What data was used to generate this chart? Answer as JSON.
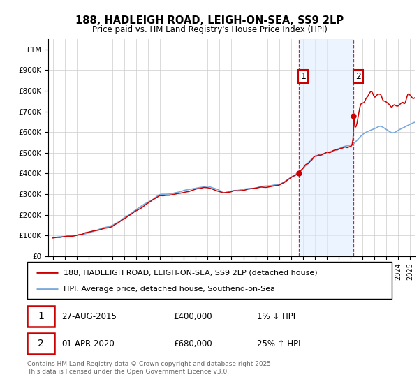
{
  "title": "188, HADLEIGH ROAD, LEIGH-ON-SEA, SS9 2LP",
  "subtitle": "Price paid vs. HM Land Registry's House Price Index (HPI)",
  "yticks": [
    0,
    100000,
    200000,
    300000,
    400000,
    500000,
    600000,
    700000,
    800000,
    900000,
    1000000
  ],
  "ytick_labels": [
    "£0",
    "£100K",
    "£200K",
    "£300K",
    "£400K",
    "£500K",
    "£600K",
    "£700K",
    "£800K",
    "£900K",
    "£1M"
  ],
  "xlim_start": 1994.6,
  "xlim_end": 2025.4,
  "ylim_min": 0,
  "ylim_max": 1050000,
  "transaction1_date": 2015.65,
  "transaction1_price": 400000,
  "transaction2_date": 2020.25,
  "transaction2_price": 680000,
  "legend_line1": "188, HADLEIGH ROAD, LEIGH-ON-SEA, SS9 2LP (detached house)",
  "legend_line2": "HPI: Average price, detached house, Southend-on-Sea",
  "annotation1_num": "1",
  "annotation1_date": "27-AUG-2015",
  "annotation1_price": "£400,000",
  "annotation1_hpi": "1% ↓ HPI",
  "annotation2_num": "2",
  "annotation2_date": "01-APR-2020",
  "annotation2_price": "£680,000",
  "annotation2_hpi": "25% ↑ HPI",
  "footer": "Contains HM Land Registry data © Crown copyright and database right 2025.\nThis data is licensed under the Open Government Licence v3.0.",
  "red_color": "#cc0000",
  "blue_color": "#7aaadd",
  "shading_color": "#ddeeff",
  "grid_color": "#cccccc",
  "background_color": "#ffffff"
}
